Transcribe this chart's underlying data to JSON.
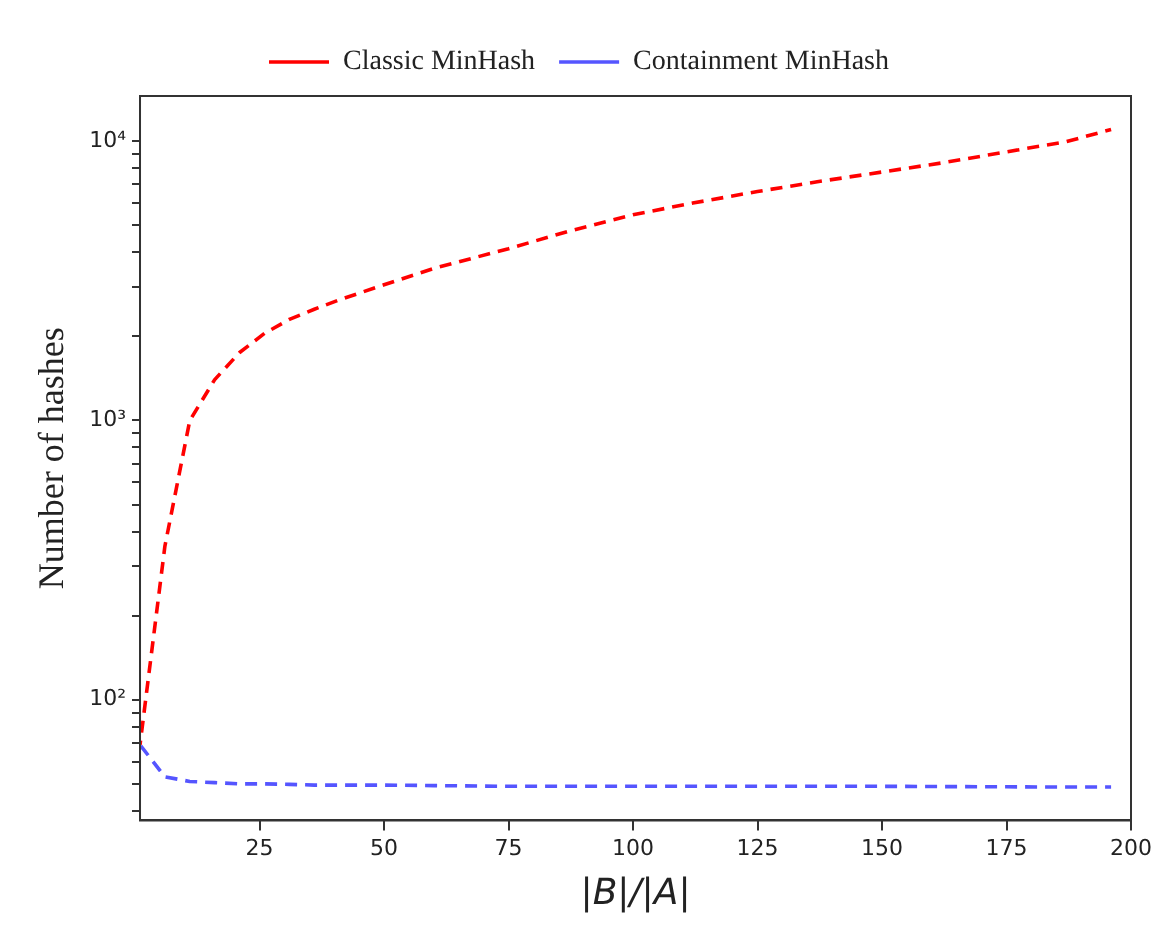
{
  "chart_data": {
    "type": "line",
    "xlabel": "|B|/|A|",
    "ylabel": "Number of hashes",
    "log": "y",
    "legend": "top",
    "line_style": "dashed",
    "marker": "none",
    "grid": false,
    "xlim": [
      1,
      200
    ],
    "xticks": [
      25,
      50,
      75,
      100,
      125,
      150,
      175,
      200
    ],
    "ylim": [
      37,
      14500
    ],
    "yticks": [
      {
        "value": 40,
        "label": null
      },
      {
        "value": 50,
        "label": null
      },
      {
        "value": 60,
        "label": null
      },
      {
        "value": 70,
        "label": null
      },
      {
        "value": 80,
        "label": null
      },
      {
        "value": 90,
        "label": null
      },
      {
        "value": 100,
        "label": "10²"
      },
      {
        "value": 200,
        "label": null
      },
      {
        "value": 300,
        "label": null
      },
      {
        "value": 400,
        "label": null
      },
      {
        "value": 500,
        "label": null
      },
      {
        "value": 600,
        "label": null
      },
      {
        "value": 700,
        "label": null
      },
      {
        "value": 800,
        "label": null
      },
      {
        "value": 900,
        "label": null
      },
      {
        "value": 1000,
        "label": "10³"
      },
      {
        "value": 2000,
        "label": null
      },
      {
        "value": 3000,
        "label": null
      },
      {
        "value": 4000,
        "label": null
      },
      {
        "value": 5000,
        "label": null
      },
      {
        "value": 6000,
        "label": null
      },
      {
        "value": 7000,
        "label": null
      },
      {
        "value": 8000,
        "label": null
      },
      {
        "value": 9000,
        "label": null
      },
      {
        "value": 10000,
        "label": "10⁴"
      }
    ],
    "x": [
      1,
      6,
      11,
      16,
      21,
      26,
      31,
      36,
      41,
      50,
      60,
      75,
      87,
      100,
      112,
      125,
      137,
      150,
      162,
      175,
      187,
      196
    ],
    "series": [
      {
        "name": "Classic MinHash",
        "color": "#ff0000",
        "values": [
          69,
          355,
          1000,
          1400,
          1750,
          2050,
          2300,
          2500,
          2700,
          3060,
          3500,
          4120,
          4750,
          5450,
          6000,
          6600,
          7150,
          7750,
          8350,
          9150,
          9950,
          11000
        ]
      },
      {
        "name": "Containment MinHash",
        "color": "#5555ff",
        "values": [
          69,
          53,
          51,
          50.5,
          50,
          50,
          49.8,
          49.5,
          49.5,
          49.5,
          49.3,
          49,
          49,
          49,
          49,
          49,
          49,
          49,
          48.9,
          48.8,
          48.7,
          48.7
        ]
      }
    ]
  }
}
